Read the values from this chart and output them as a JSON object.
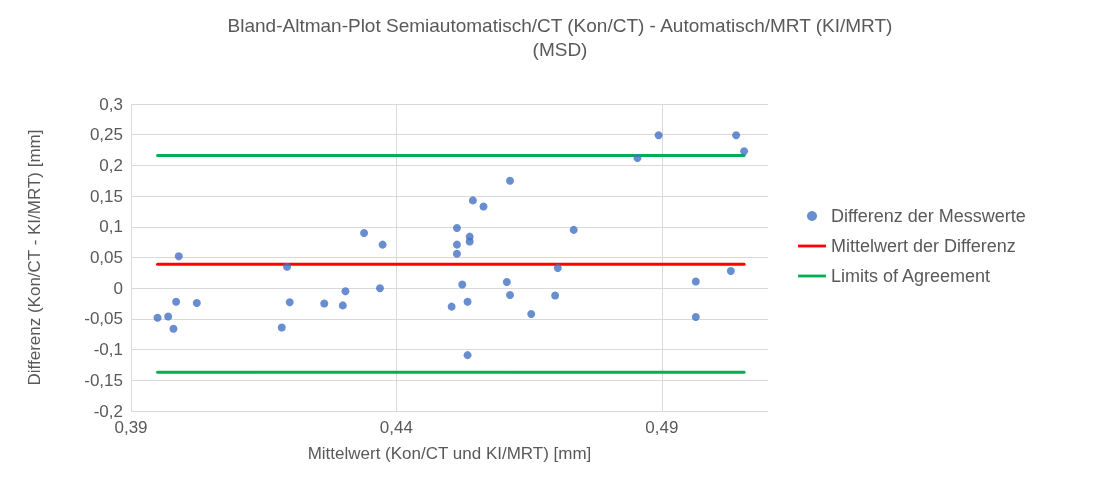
{
  "chart_data": {
    "type": "scatter",
    "title": "Bland-Altman-Plot Semiautomatisch/CT (Kon/CT) - Automatisch/MRT (KI/MRT)\n(MSD)",
    "xlabel": "Mittelwert (Kon/CT und KI/MRT) [mm]",
    "ylabel": "Differenz (Kon/CT - KI/MRT) [mm]",
    "series": [
      {
        "name": "Differenz der Messwerte",
        "color": "#4472c4",
        "marker": "circle",
        "x": [
          0.395,
          0.397,
          0.398,
          0.3985,
          0.399,
          0.4024,
          0.4184,
          0.4194,
          0.4199,
          0.4264,
          0.4299,
          0.4304,
          0.4339,
          0.4369,
          0.4374,
          0.4504,
          0.4514,
          0.4514,
          0.4514,
          0.4524,
          0.4534,
          0.4534,
          0.4538,
          0.4538,
          0.4544,
          0.4564,
          0.4608,
          0.4614,
          0.4614,
          0.4654,
          0.4699,
          0.4704,
          0.4734,
          0.4854,
          0.4894,
          0.4964,
          0.4964,
          0.503,
          0.504,
          0.5055
        ],
        "values": [
          -0.048,
          -0.046,
          -0.066,
          -0.022,
          0.052,
          -0.024,
          -0.064,
          0.035,
          -0.023,
          -0.025,
          -0.028,
          -0.005,
          0.09,
          0.0,
          0.071,
          -0.03,
          0.098,
          0.071,
          0.056,
          0.006,
          -0.022,
          -0.109,
          0.084,
          0.076,
          0.143,
          0.133,
          0.01,
          0.175,
          -0.011,
          -0.042,
          -0.012,
          0.033,
          0.095,
          0.212,
          0.249,
          0.011,
          -0.047,
          0.028,
          0.249,
          0.223
        ]
      },
      {
        "name": "Mittelwert der Differenz",
        "type": "line",
        "color": "#ff0000",
        "marker": "none",
        "line_style": "solid",
        "x": [
          0.395,
          0.5055
        ],
        "values": [
          0.039,
          0.039
        ]
      },
      {
        "name": "Limits of Agreement",
        "type": "line",
        "color": "#00b050",
        "marker": "none",
        "line_style": "solid",
        "x": [
          0.395,
          0.5055
        ],
        "values": [
          0.216,
          0.216
        ]
      },
      {
        "type": "line",
        "color": "#00b050",
        "marker": "none",
        "line_style": "solid",
        "x": [
          0.395,
          0.5055
        ],
        "values": [
          -0.137,
          -0.137
        ]
      }
    ],
    "xlim": [
      0.39,
      0.51
    ],
    "xticks": [
      {
        "value": 0.39,
        "label": "0,39"
      },
      {
        "value": 0.44,
        "label": "0,44"
      },
      {
        "value": 0.49,
        "label": "0,49"
      }
    ],
    "ylim": [
      -0.2,
      0.3
    ],
    "yticks": [
      {
        "value": -0.2,
        "label": "-0,2"
      },
      {
        "value": -0.15,
        "label": "-0,15"
      },
      {
        "value": -0.1,
        "label": "-0,1"
      },
      {
        "value": -0.05,
        "label": "-0,05"
      },
      {
        "value": 0,
        "label": "0"
      },
      {
        "value": 0.05,
        "label": "0,05"
      },
      {
        "value": 0.1,
        "label": "0,1"
      },
      {
        "value": 0.15,
        "label": "0,15"
      },
      {
        "value": 0.2,
        "label": "0,2"
      },
      {
        "value": 0.25,
        "label": "0,25"
      },
      {
        "value": 0.3,
        "label": "0,3"
      }
    ],
    "grid": true,
    "legend": "right"
  }
}
